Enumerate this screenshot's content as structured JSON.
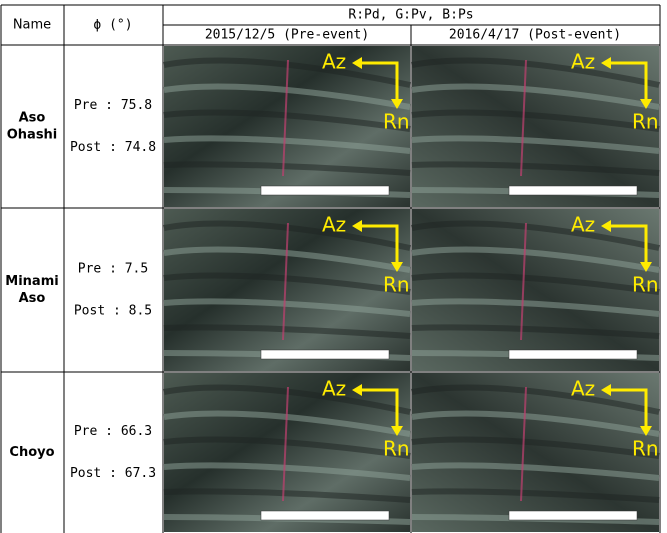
{
  "header": {
    "name": "Name",
    "phi": "ϕ (°)",
    "composite": "R:Pd, G:Pv, B:Ps",
    "dates": [
      "2015/12/5 (Pre-event)",
      "2016/4/17 (Post-event)"
    ]
  },
  "arrows": {
    "azimuth": "Az",
    "range": "Rn"
  },
  "rows": [
    {
      "name": [
        "Aso",
        "Ohashi"
      ],
      "pre": "Pre : 75.8",
      "post": "Post : 74.8"
    },
    {
      "name": [
        "Minami",
        "Aso"
      ],
      "pre": "Pre : 7.5",
      "post": "Post : 8.5"
    },
    {
      "name": [
        "Choyo"
      ],
      "pre": "Pre : 66.3",
      "post": "Post : 67.3"
    }
  ]
}
